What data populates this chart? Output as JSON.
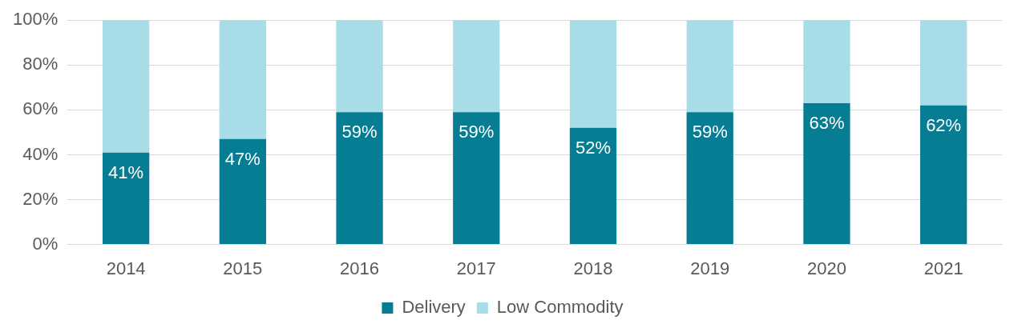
{
  "chart_data": {
    "type": "bar",
    "stacked": true,
    "categories": [
      "2014",
      "2015",
      "2016",
      "2017",
      "2018",
      "2019",
      "2020",
      "2021"
    ],
    "series": [
      {
        "name": "Delivery",
        "color": "#067d92",
        "values": [
          41,
          47,
          59,
          59,
          52,
          59,
          63,
          62
        ],
        "value_labels": [
          "41%",
          "47%",
          "59%",
          "59%",
          "52%",
          "59%",
          "63%",
          "62%"
        ]
      },
      {
        "name": "Low Commodity",
        "color": "#a8dce7",
        "values": [
          59,
          53,
          41,
          41,
          48,
          41,
          37,
          38
        ]
      }
    ],
    "ylim": [
      0,
      100
    ],
    "yticks": [
      {
        "value": 0,
        "label": "0%"
      },
      {
        "value": 20,
        "label": "20%"
      },
      {
        "value": 40,
        "label": "40%"
      },
      {
        "value": 60,
        "label": "60%"
      },
      {
        "value": 80,
        "label": "80%"
      },
      {
        "value": 100,
        "label": "100%"
      }
    ],
    "grid": "y",
    "legend": "bottom"
  }
}
